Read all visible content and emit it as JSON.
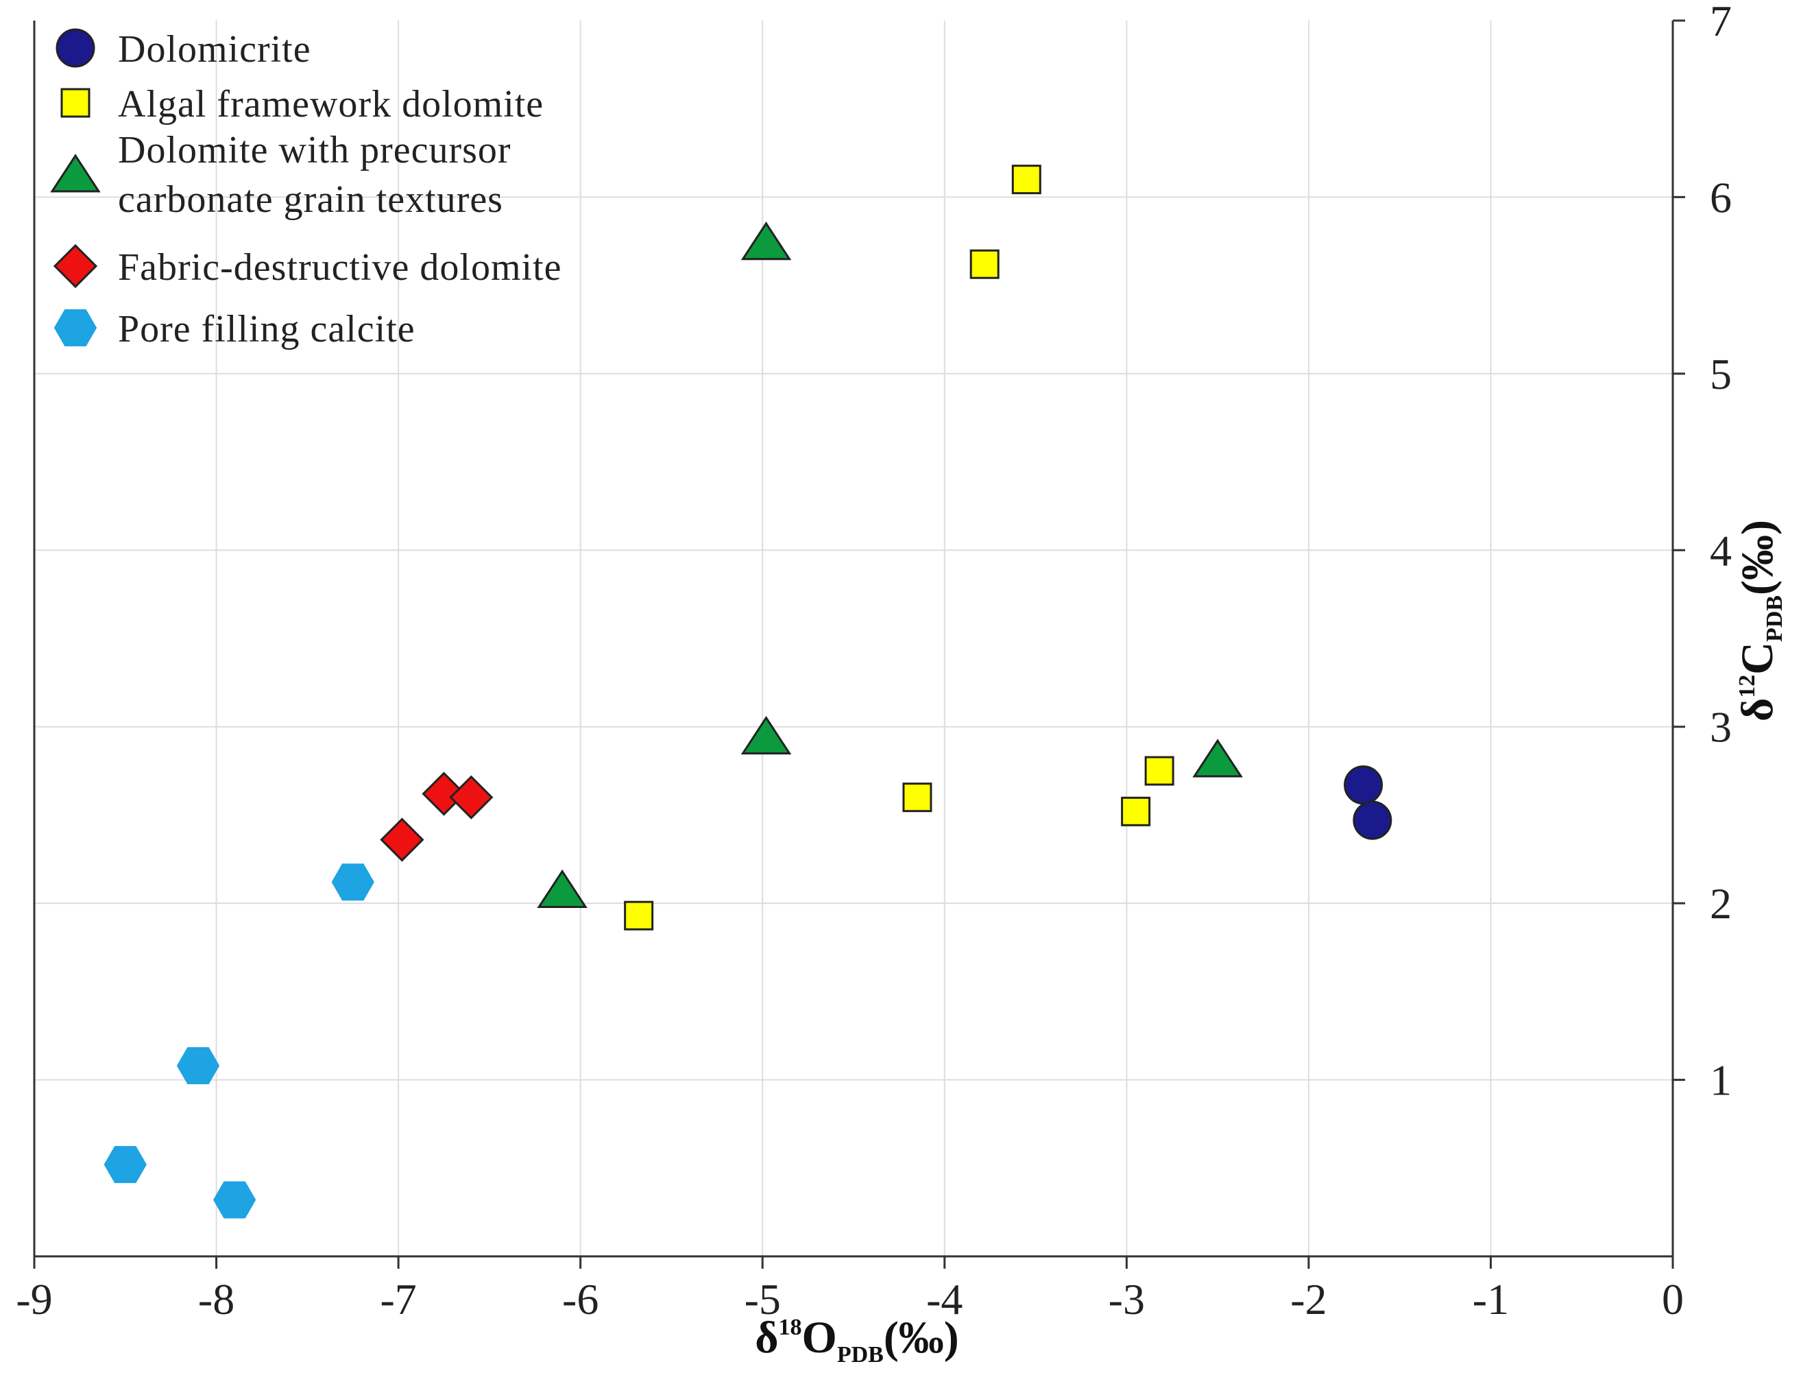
{
  "chart_data": {
    "type": "scatter",
    "title": "",
    "xlabel": {
      "main": "δ",
      "sup": "18",
      "element": "O",
      "sub": "PDB",
      "unit": "(‰)"
    },
    "ylabel": {
      "main": "δ",
      "sup": "12",
      "element": "C",
      "sub": "PDB",
      "unit": "(‰)"
    },
    "xlim": [
      -9,
      0
    ],
    "ylim": [
      0,
      7
    ],
    "x_ticks": [
      "-9",
      "-8",
      "-7",
      "-6",
      "-5",
      "-4",
      "-3",
      "-2",
      "-1",
      "0"
    ],
    "y_ticks": [
      "1",
      "2",
      "3",
      "4",
      "5",
      "6",
      "7"
    ],
    "grid": true,
    "y_axis_side": "right",
    "legend_position": "top-left",
    "series": [
      {
        "name": "Dolomicrite",
        "marker": "circle",
        "color": "#1a1a8c",
        "points": [
          [
            -1.7,
            2.67
          ],
          [
            -1.65,
            2.47
          ]
        ]
      },
      {
        "name": "Algal framework dolomite",
        "marker": "square",
        "color": "#ffff00",
        "points": [
          [
            -3.55,
            6.1
          ],
          [
            -3.78,
            5.62
          ],
          [
            -4.15,
            2.6
          ],
          [
            -2.82,
            2.75
          ],
          [
            -2.95,
            2.52
          ],
          [
            -5.68,
            1.93
          ]
        ]
      },
      {
        "name": "Dolomite with precursor carbonate grain textures",
        "marker": "triangle",
        "color": "#0c9a3e",
        "points": [
          [
            -4.98,
            5.75
          ],
          [
            -4.98,
            2.95
          ],
          [
            -2.5,
            2.82
          ],
          [
            -6.1,
            2.08
          ]
        ]
      },
      {
        "name": "Fabric-destructive dolomite",
        "marker": "diamond",
        "color": "#ee1111",
        "points": [
          [
            -6.75,
            2.62
          ],
          [
            -6.6,
            2.6
          ],
          [
            -6.98,
            2.36
          ]
        ]
      },
      {
        "name": "Pore filling calcite",
        "marker": "hexagon",
        "color": "#1ea3e3",
        "points": [
          [
            -7.25,
            2.12
          ],
          [
            -8.1,
            1.08
          ],
          [
            -8.5,
            0.52
          ],
          [
            -7.9,
            0.32
          ]
        ]
      }
    ],
    "legend": [
      {
        "label": "Dolomicrite"
      },
      {
        "label": "Algal framework dolomite"
      },
      {
        "label": "Dolomite with precursor carbonate grain textures",
        "lines": [
          "Dolomite with precursor",
          "carbonate grain textures"
        ]
      },
      {
        "label": "Fabric-destructive dolomite"
      },
      {
        "label": "Pore filling calcite"
      }
    ]
  }
}
